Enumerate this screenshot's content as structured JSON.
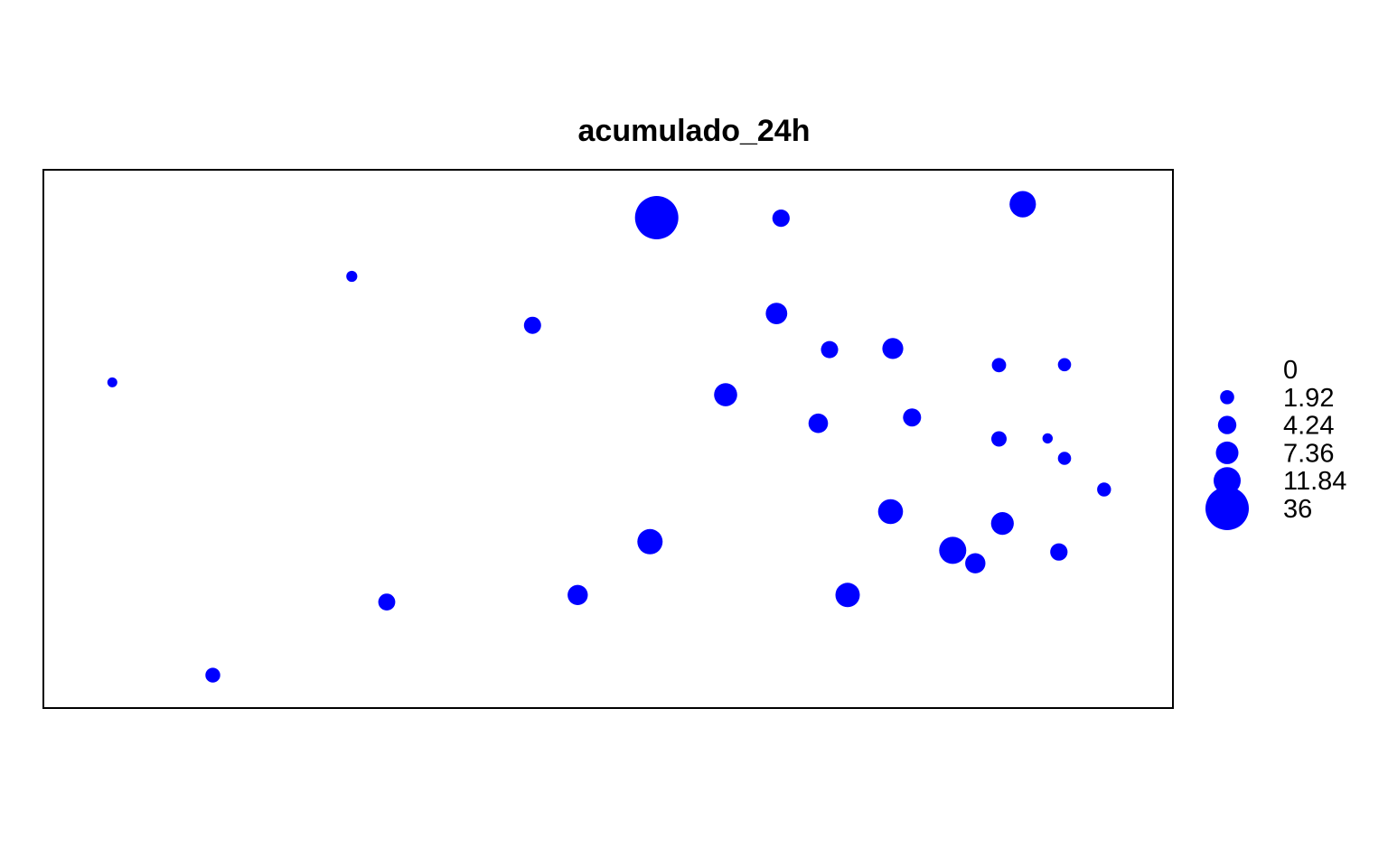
{
  "chart_data": {
    "type": "scatter",
    "title": "acumulado_24h",
    "xlabel": "",
    "ylabel": "",
    "xlim": [
      0,
      100
    ],
    "ylim": [
      0,
      100
    ],
    "grid": false,
    "legend_position": "right",
    "marker_color": "#0000ff",
    "legend": {
      "breaks": [
        {
          "label": "0",
          "value": 0
        },
        {
          "label": "1.92",
          "value": 1.92
        },
        {
          "label": "4.24",
          "value": 4.24
        },
        {
          "label": "7.36",
          "value": 7.36
        },
        {
          "label": "11.84",
          "value": 11.84
        },
        {
          "label": "36",
          "value": 36
        }
      ]
    },
    "points": [
      {
        "x": 6.1,
        "y": 60.5,
        "value": 0.5
      },
      {
        "x": 15.0,
        "y": 6.1,
        "value": 2.2
      },
      {
        "x": 27.3,
        "y": 80.2,
        "value": 0.8
      },
      {
        "x": 30.4,
        "y": 19.7,
        "value": 3.3
      },
      {
        "x": 43.3,
        "y": 71.1,
        "value": 3.5
      },
      {
        "x": 47.3,
        "y": 21.0,
        "value": 5.5
      },
      {
        "x": 53.7,
        "y": 30.9,
        "value": 9.8
      },
      {
        "x": 54.3,
        "y": 91.1,
        "value": 36
      },
      {
        "x": 60.4,
        "y": 58.2,
        "value": 7.8
      },
      {
        "x": 64.9,
        "y": 73.3,
        "value": 6.5
      },
      {
        "x": 65.3,
        "y": 91.0,
        "value": 3.6
      },
      {
        "x": 68.6,
        "y": 52.9,
        "value": 5.0
      },
      {
        "x": 69.6,
        "y": 66.6,
        "value": 3.4
      },
      {
        "x": 71.2,
        "y": 21.0,
        "value": 9.0
      },
      {
        "x": 75.0,
        "y": 36.5,
        "value": 9.5
      },
      {
        "x": 75.2,
        "y": 66.8,
        "value": 6.0
      },
      {
        "x": 76.9,
        "y": 54.0,
        "value": 4.0
      },
      {
        "x": 80.5,
        "y": 29.3,
        "value": 11.8
      },
      {
        "x": 82.5,
        "y": 26.9,
        "value": 5.5
      },
      {
        "x": 84.6,
        "y": 50.0,
        "value": 2.5
      },
      {
        "x": 84.6,
        "y": 63.7,
        "value": 2.0
      },
      {
        "x": 84.9,
        "y": 34.3,
        "value": 7.5
      },
      {
        "x": 86.7,
        "y": 93.6,
        "value": 11.0
      },
      {
        "x": 88.9,
        "y": 50.1,
        "value": 0.6
      },
      {
        "x": 89.9,
        "y": 29.0,
        "value": 3.6
      },
      {
        "x": 90.4,
        "y": 46.4,
        "value": 1.5
      },
      {
        "x": 90.4,
        "y": 63.8,
        "value": 1.5
      },
      {
        "x": 93.9,
        "y": 40.6,
        "value": 1.8
      }
    ]
  }
}
